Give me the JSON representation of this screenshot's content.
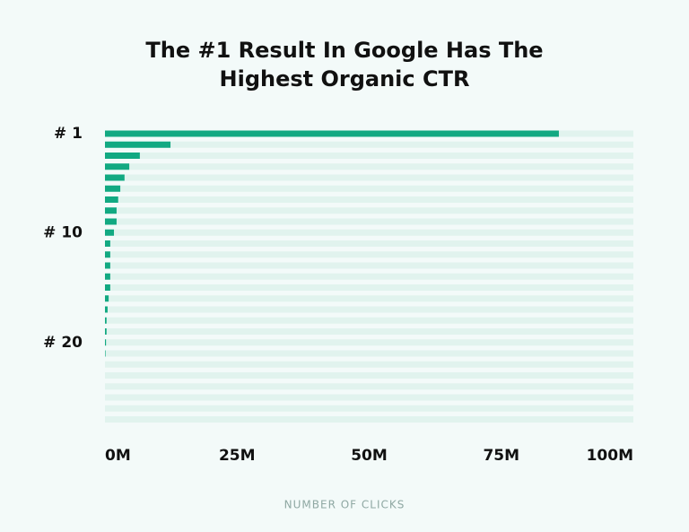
{
  "chart_data": {
    "type": "hbar",
    "title": [
      "The #1 Result In Google Has The",
      "Highest Organic CTR"
    ],
    "x_label": "NUMBER OF CLICKS",
    "categories": [
      "# 1",
      null,
      null,
      null,
      null,
      null,
      null,
      null,
      null,
      "# 10",
      null,
      null,
      null,
      null,
      null,
      null,
      null,
      null,
      null,
      "# 20",
      null,
      null,
      null,
      null,
      null,
      null,
      null
    ],
    "values": [
      85.9,
      12.4,
      6.6,
      4.6,
      3.7,
      2.9,
      2.5,
      2.2,
      2.2,
      1.7,
      1.0,
      1.0,
      1.0,
      1.0,
      1.0,
      0.7,
      0.5,
      0.3,
      0.3,
      0.2,
      0.1,
      0,
      0,
      0,
      0,
      0,
      0
    ],
    "color": "#12a982",
    "xlim": [
      0,
      100
    ],
    "xticks": [
      {
        "value": 0,
        "label": "0M"
      },
      {
        "value": 25,
        "label": "25M"
      },
      {
        "value": 50,
        "label": "50M"
      },
      {
        "value": 75,
        "label": "75M"
      },
      {
        "value": 100,
        "label": "100M"
      }
    ]
  }
}
